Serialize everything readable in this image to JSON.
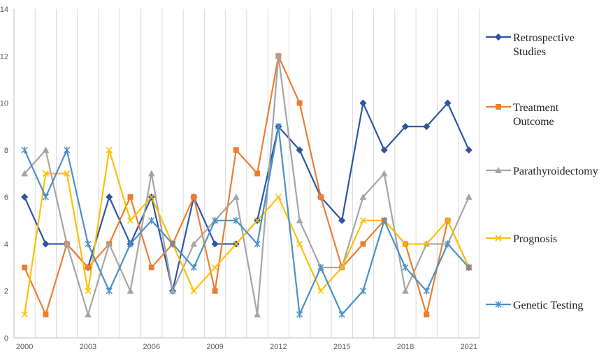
{
  "chart_data": {
    "type": "line",
    "title": "",
    "xlabel": "",
    "ylabel": "",
    "x": [
      2000,
      2001,
      2002,
      2003,
      2004,
      2005,
      2006,
      2007,
      2008,
      2009,
      2010,
      2011,
      2012,
      2013,
      2014,
      2015,
      2016,
      2017,
      2018,
      2019,
      2020,
      2021
    ],
    "x_tick_labels": [
      "2000",
      "2003",
      "2006",
      "2009",
      "2012",
      "2015",
      "2018",
      "2021"
    ],
    "y_tick_labels": [
      "0",
      "2",
      "4",
      "6",
      "8",
      "10",
      "12",
      "14"
    ],
    "ylim": [
      0,
      14
    ],
    "grid": "vertical",
    "legend_position": "right",
    "series": [
      {
        "name": "Retrospective Studies",
        "color": "#2E55A4",
        "marker": "diamond",
        "values": [
          6,
          4,
          4,
          3,
          6,
          4,
          6,
          2,
          6,
          4,
          4,
          5,
          9,
          8,
          6,
          5,
          10,
          8,
          9,
          9,
          10,
          8
        ]
      },
      {
        "name": "Treatment Outcome",
        "color": "#ED7D31",
        "marker": "square",
        "values": [
          3,
          1,
          4,
          3,
          4,
          6,
          3,
          4,
          6,
          2,
          8,
          7,
          12,
          10,
          6,
          3,
          4,
          5,
          4,
          1,
          5,
          3
        ]
      },
      {
        "name": "Parathyroidectomy",
        "color": "#A5A5A5",
        "marker": "triangle",
        "values": [
          7,
          8,
          4,
          1,
          4,
          2,
          7,
          2,
          4,
          5,
          6,
          1,
          12,
          5,
          3,
          3,
          6,
          7,
          2,
          4,
          4,
          6
        ]
      },
      {
        "name": "Prognosis",
        "color": "#FFC000",
        "marker": "x",
        "values": [
          1,
          7,
          7,
          2,
          8,
          5,
          6,
          4,
          2,
          3,
          4,
          5,
          6,
          4,
          2,
          3,
          5,
          5,
          4,
          4,
          5,
          3
        ]
      },
      {
        "name": "Genetic Testing",
        "color": "#4A90C9",
        "marker": "asterisk",
        "values": [
          8,
          6,
          8,
          4,
          2,
          4,
          5,
          4,
          3,
          5,
          5,
          4,
          9,
          1,
          3,
          1,
          2,
          5,
          3,
          2,
          4,
          3
        ]
      }
    ],
    "legend_labels": [
      [
        "Retrospective",
        "Studies"
      ],
      [
        "Treatment",
        "Outcome"
      ],
      [
        "Parathyroidectomy"
      ],
      [
        "Prognosis"
      ],
      [
        "Genetic Testing"
      ]
    ]
  }
}
